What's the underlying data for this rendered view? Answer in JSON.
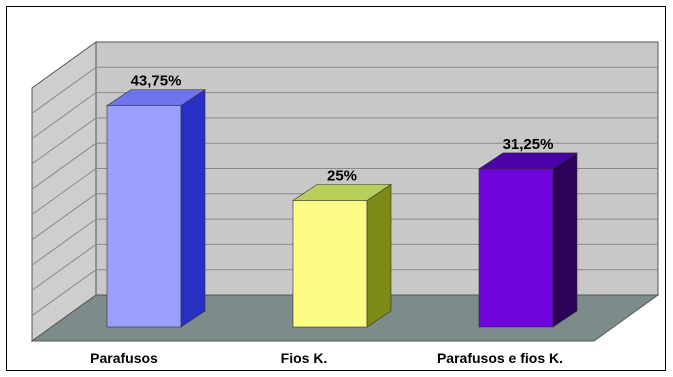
{
  "chart_data": {
    "type": "bar",
    "categories": [
      "Parafusos",
      "Fios K.",
      "Parafusos e fios K."
    ],
    "values": [
      43.75,
      25,
      31.25
    ],
    "data_labels": [
      "43,75%",
      "25%",
      "31,25%"
    ],
    "ylim": [
      0,
      50
    ],
    "grid": true,
    "style": "3d",
    "colors": {
      "front": [
        "#9aa0fb",
        "#fdfd86",
        "#6f05dd"
      ],
      "side": [
        "#2730c3",
        "#7d8a17",
        "#2c0258"
      ],
      "top": [
        "#6d74ee",
        "#b7ce5b",
        "#4b02a6"
      ],
      "back_wall": "#c8c8c8",
      "side_wall": "#cecece",
      "floor": "#7d8b8a",
      "grid": "#8a8a8a"
    }
  }
}
